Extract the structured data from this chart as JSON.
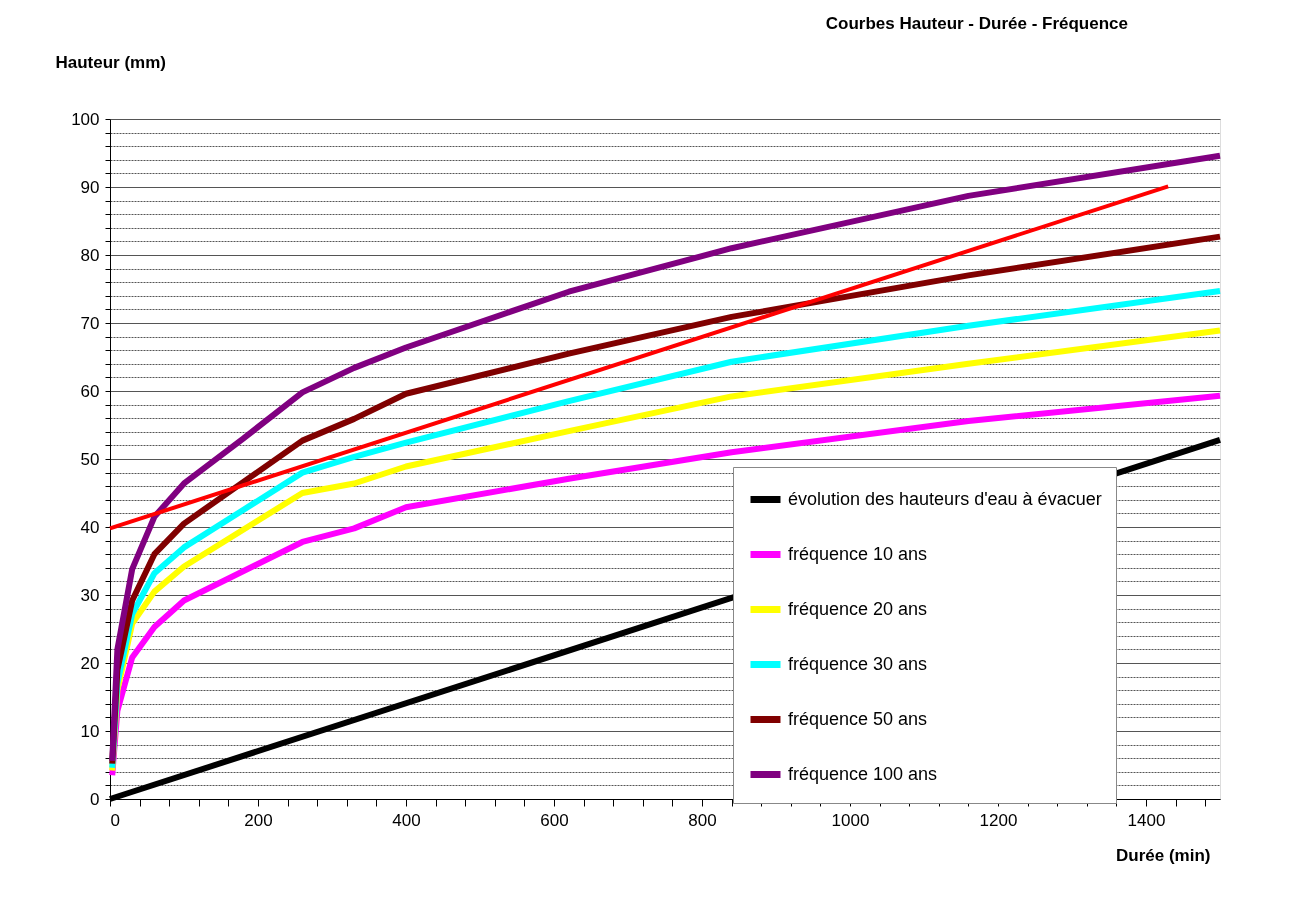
{
  "chart_data": {
    "type": "line",
    "title": "Courbes Hauteur - Durée - Fréquence",
    "xlabel": "Durée (min)",
    "ylabel": "Hauteur (mm)",
    "xlim": [
      0,
      1500
    ],
    "ylim": [
      0,
      100
    ],
    "xticks": [
      0,
      {
        "value": 40,
        "label": null
      },
      {
        "value": 80,
        "label": null
      },
      {
        "value": 120,
        "label": null
      },
      {
        "value": 160,
        "label": null
      },
      200,
      {
        "value": 240,
        "label": null
      },
      {
        "value": 280,
        "label": null
      },
      {
        "value": 320,
        "label": null
      },
      {
        "value": 360,
        "label": null
      },
      400,
      {
        "value": 440,
        "label": null
      },
      {
        "value": 480,
        "label": null
      },
      {
        "value": 520,
        "label": null
      },
      {
        "value": 560,
        "label": null
      },
      600,
      {
        "value": 640,
        "label": null
      },
      {
        "value": 680,
        "label": null
      },
      {
        "value": 720,
        "label": null
      },
      {
        "value": 760,
        "label": null
      },
      800,
      {
        "value": 840,
        "label": null
      },
      {
        "value": 880,
        "label": null
      },
      {
        "value": 920,
        "label": null
      },
      {
        "value": 960,
        "label": null
      },
      1000,
      {
        "value": 1040,
        "label": null
      },
      {
        "value": 1080,
        "label": null
      },
      {
        "value": 1120,
        "label": null
      },
      {
        "value": 1160,
        "label": null
      },
      1200,
      {
        "value": 1240,
        "label": null
      },
      {
        "value": 1280,
        "label": null
      },
      {
        "value": 1320,
        "label": null
      },
      {
        "value": 1360,
        "label": null
      },
      1400,
      {
        "value": 1440,
        "label": null
      },
      {
        "value": 1480,
        "label": null
      }
    ],
    "yticks": [
      0,
      {
        "value": 2,
        "label": null
      },
      {
        "value": 4,
        "label": null
      },
      {
        "value": 6,
        "label": null
      },
      {
        "value": 8,
        "label": null
      },
      10,
      {
        "value": 12,
        "label": null
      },
      {
        "value": 14,
        "label": null
      },
      {
        "value": 16,
        "label": null
      },
      {
        "value": 18,
        "label": null
      },
      20,
      {
        "value": 22,
        "label": null
      },
      {
        "value": 24,
        "label": null
      },
      {
        "value": 26,
        "label": null
      },
      {
        "value": 28,
        "label": null
      },
      30,
      {
        "value": 32,
        "label": null
      },
      {
        "value": 34,
        "label": null
      },
      {
        "value": 36,
        "label": null
      },
      {
        "value": 38,
        "label": null
      },
      40,
      {
        "value": 42,
        "label": null
      },
      {
        "value": 44,
        "label": null
      },
      {
        "value": 46,
        "label": null
      },
      {
        "value": 48,
        "label": null
      },
      50,
      {
        "value": 52,
        "label": null
      },
      {
        "value": 54,
        "label": null
      },
      {
        "value": 56,
        "label": null
      },
      {
        "value": 58,
        "label": null
      },
      60,
      {
        "value": 62,
        "label": null
      },
      {
        "value": 64,
        "label": null
      },
      {
        "value": 66,
        "label": null
      },
      {
        "value": 68,
        "label": null
      },
      70,
      {
        "value": 72,
        "label": null
      },
      {
        "value": 74,
        "label": null
      },
      {
        "value": 76,
        "label": null
      },
      {
        "value": 78,
        "label": null
      },
      80,
      {
        "value": 82,
        "label": null
      },
      {
        "value": 84,
        "label": null
      },
      {
        "value": 86,
        "label": null
      },
      {
        "value": 88,
        "label": null
      },
      90,
      {
        "value": 92,
        "label": null
      },
      {
        "value": 94,
        "label": null
      },
      {
        "value": 96,
        "label": null
      },
      {
        "value": 98,
        "label": null
      },
      100
    ],
    "grid": "y",
    "legend": "bottom right",
    "series": [
      {
        "name": "évolution des hauteurs d'eau à évacuer",
        "color": "#000000",
        "x": [
          0,
          1500
        ],
        "values": [
          0,
          52.8
        ]
      },
      {
        "name": "fréquence 10 ans",
        "color": "#ff00ff",
        "x": [
          3,
          10,
          30,
          60,
          100,
          260,
          330,
          400,
          620,
          840,
          1160,
          1500
        ],
        "values": [
          3.5,
          13,
          20.8,
          25.3,
          29.2,
          37.8,
          39.8,
          42.9,
          47.1,
          51.0,
          55.6,
          59.3
        ]
      },
      {
        "name": "fréquence 20 ans",
        "color": "#ffff00",
        "x": [
          3,
          10,
          30,
          60,
          100,
          260,
          330,
          400,
          620,
          840,
          1160,
          1500
        ],
        "values": [
          4.2,
          16,
          25.8,
          30.5,
          34.2,
          45.0,
          46.4,
          48.9,
          54.1,
          59.2,
          64.0,
          68.9
        ]
      },
      {
        "name": "fréquence 30 ans",
        "color": "#00ffff",
        "x": [
          3,
          10,
          30,
          60,
          100,
          260,
          330,
          400,
          620,
          840,
          1160,
          1500
        ],
        "values": [
          4.6,
          17,
          27.2,
          33.2,
          37.0,
          48.0,
          50.3,
          52.4,
          58.5,
          64.3,
          69.6,
          74.7
        ]
      },
      {
        "name": "fréquence 50 ans",
        "color": "#800000",
        "x": [
          3,
          10,
          30,
          60,
          100,
          260,
          330,
          400,
          620,
          840,
          1160,
          1500
        ],
        "values": [
          5.2,
          19,
          29.2,
          36.0,
          40.5,
          52.7,
          55.9,
          59.6,
          65.5,
          70.9,
          77.0,
          82.7
        ]
      },
      {
        "name": "fréquence 100 ans",
        "color": "#800080",
        "x": [
          3,
          10,
          30,
          60,
          100,
          180,
          260,
          330,
          400,
          620,
          840,
          1160,
          1500
        ],
        "values": [
          5.6,
          22,
          33.8,
          41.5,
          46.4,
          53.0,
          59.8,
          63.4,
          66.4,
          74.6,
          81.0,
          88.7,
          94.6
        ]
      },
      {
        "color": "#ff0000",
        "x": [
          0,
          1430
        ],
        "values": [
          39.8,
          90.1
        ]
      }
    ]
  }
}
